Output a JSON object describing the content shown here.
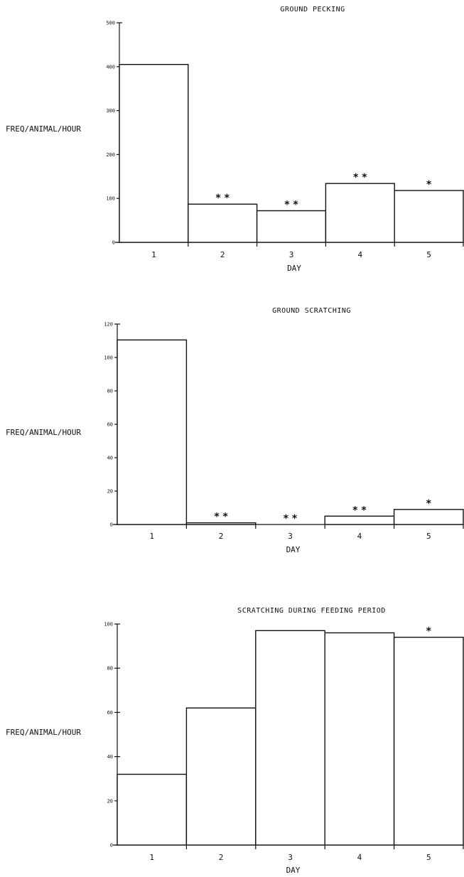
{
  "chart_data": [
    {
      "type": "bar",
      "title": "GROUND PECKING",
      "xlabel": "DAY",
      "ylabel": "FREQ/ANIMAL/HOUR",
      "ylim": [
        0,
        500
      ],
      "yticks": [
        0,
        100,
        200,
        300,
        400,
        500
      ],
      "categories": [
        "1",
        "2",
        "3",
        "4",
        "5"
      ],
      "values": [
        405,
        87,
        72,
        134,
        118
      ],
      "significance": [
        "",
        "* *",
        "* *",
        "* *",
        "*"
      ],
      "grid": false
    },
    {
      "type": "bar",
      "title": "GROUND SCRATCHING",
      "xlabel": "DAY",
      "ylabel": "FREQ/ANIMAL/HOUR",
      "ylim": [
        0,
        120
      ],
      "yticks": [
        0,
        20,
        40,
        60,
        80,
        100,
        120
      ],
      "categories": [
        "1",
        "2",
        "3",
        "4",
        "5"
      ],
      "values": [
        110.5,
        1,
        0,
        5,
        9
      ],
      "significance": [
        "",
        "* *",
        "* *",
        "* *",
        "*"
      ],
      "grid": false
    },
    {
      "type": "bar",
      "title": "SCRATCHING DURING FEEDING PERIOD",
      "xlabel": "DAY",
      "ylabel": "FREQ/ANIMAL/HOUR",
      "ylim": [
        0,
        100
      ],
      "yticks": [
        0,
        20,
        40,
        60,
        80,
        100
      ],
      "categories": [
        "1",
        "2",
        "3",
        "4",
        "5"
      ],
      "values": [
        32,
        62,
        97,
        96,
        94
      ],
      "significance": [
        "",
        "",
        "",
        "",
        "*"
      ],
      "grid": false
    }
  ]
}
